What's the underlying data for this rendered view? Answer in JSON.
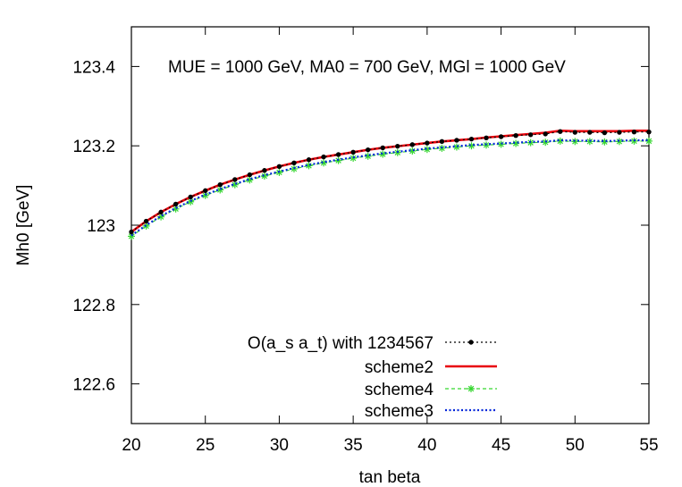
{
  "chart_data": {
    "type": "line",
    "annotation": "MUE = 1000 GeV, MA0 = 700 GeV, MGl = 1000 GeV",
    "xlabel": "tan beta",
    "ylabel": "Mh0 [GeV]",
    "xlim": [
      20,
      55
    ],
    "ylim": [
      122.5,
      123.5
    ],
    "xticks": [
      20,
      25,
      30,
      35,
      40,
      45,
      50,
      55
    ],
    "yticks": [
      122.6,
      122.8,
      123,
      123.2,
      123.4
    ],
    "xtick_labels": [
      "20",
      "25",
      "30",
      "35",
      "40",
      "45",
      "50",
      "55"
    ],
    "ytick_labels": [
      "122.6",
      "122.8",
      "123",
      "123.2",
      "123.4"
    ],
    "legend_position": "bottom-center",
    "x": [
      20,
      21,
      22,
      23,
      24,
      25,
      26,
      27,
      28,
      29,
      30,
      31,
      32,
      33,
      34,
      35,
      36,
      37,
      38,
      39,
      40,
      41,
      42,
      43,
      44,
      45,
      46,
      47,
      48,
      49,
      50,
      51,
      52,
      53,
      54,
      55
    ],
    "series": [
      {
        "name": "O(a_s a_t) with 1234567",
        "color": "#000000",
        "style": "dotted-dots",
        "values": [
          122.983,
          123.01,
          123.033,
          123.053,
          123.071,
          123.087,
          123.102,
          123.115,
          123.127,
          123.138,
          123.148,
          123.157,
          123.165,
          123.172,
          123.178,
          123.184,
          123.19,
          123.195,
          123.199,
          123.203,
          123.207,
          123.211,
          123.214,
          123.217,
          123.22,
          123.223,
          123.226,
          123.228,
          123.23,
          123.236,
          123.234,
          123.234,
          123.233,
          123.234,
          123.235,
          123.235
        ]
      },
      {
        "name": "scheme2",
        "color": "#e8000b",
        "style": "solid",
        "values": [
          122.983,
          123.01,
          123.033,
          123.053,
          123.071,
          123.087,
          123.102,
          123.115,
          123.127,
          123.138,
          123.148,
          123.157,
          123.165,
          123.172,
          123.178,
          123.184,
          123.19,
          123.195,
          123.199,
          123.203,
          123.207,
          123.211,
          123.214,
          123.217,
          123.221,
          123.224,
          123.227,
          123.23,
          123.233,
          123.238,
          123.237,
          123.237,
          123.237,
          123.237,
          123.238,
          123.238
        ]
      },
      {
        "name": "scheme4",
        "color": "#35d62f",
        "style": "dashed-stars",
        "values": [
          122.972,
          122.998,
          123.021,
          123.041,
          123.059,
          123.075,
          123.089,
          123.102,
          123.114,
          123.124,
          123.133,
          123.142,
          123.15,
          123.157,
          123.163,
          123.169,
          123.174,
          123.179,
          123.183,
          123.187,
          123.191,
          123.194,
          123.197,
          123.2,
          123.202,
          123.204,
          123.206,
          123.208,
          123.209,
          123.212,
          123.211,
          123.211,
          123.21,
          123.211,
          123.212,
          123.212
        ]
      },
      {
        "name": "scheme3",
        "color": "#0026d9",
        "style": "dotted",
        "values": [
          122.974,
          123.0,
          123.023,
          123.043,
          123.061,
          123.077,
          123.091,
          123.104,
          123.116,
          123.126,
          123.135,
          123.144,
          123.152,
          123.159,
          123.165,
          123.171,
          123.176,
          123.181,
          123.185,
          123.189,
          123.193,
          123.196,
          123.199,
          123.202,
          123.204,
          123.206,
          123.208,
          123.21,
          123.211,
          123.214,
          123.213,
          123.213,
          123.212,
          123.213,
          123.214,
          123.214
        ]
      }
    ]
  }
}
